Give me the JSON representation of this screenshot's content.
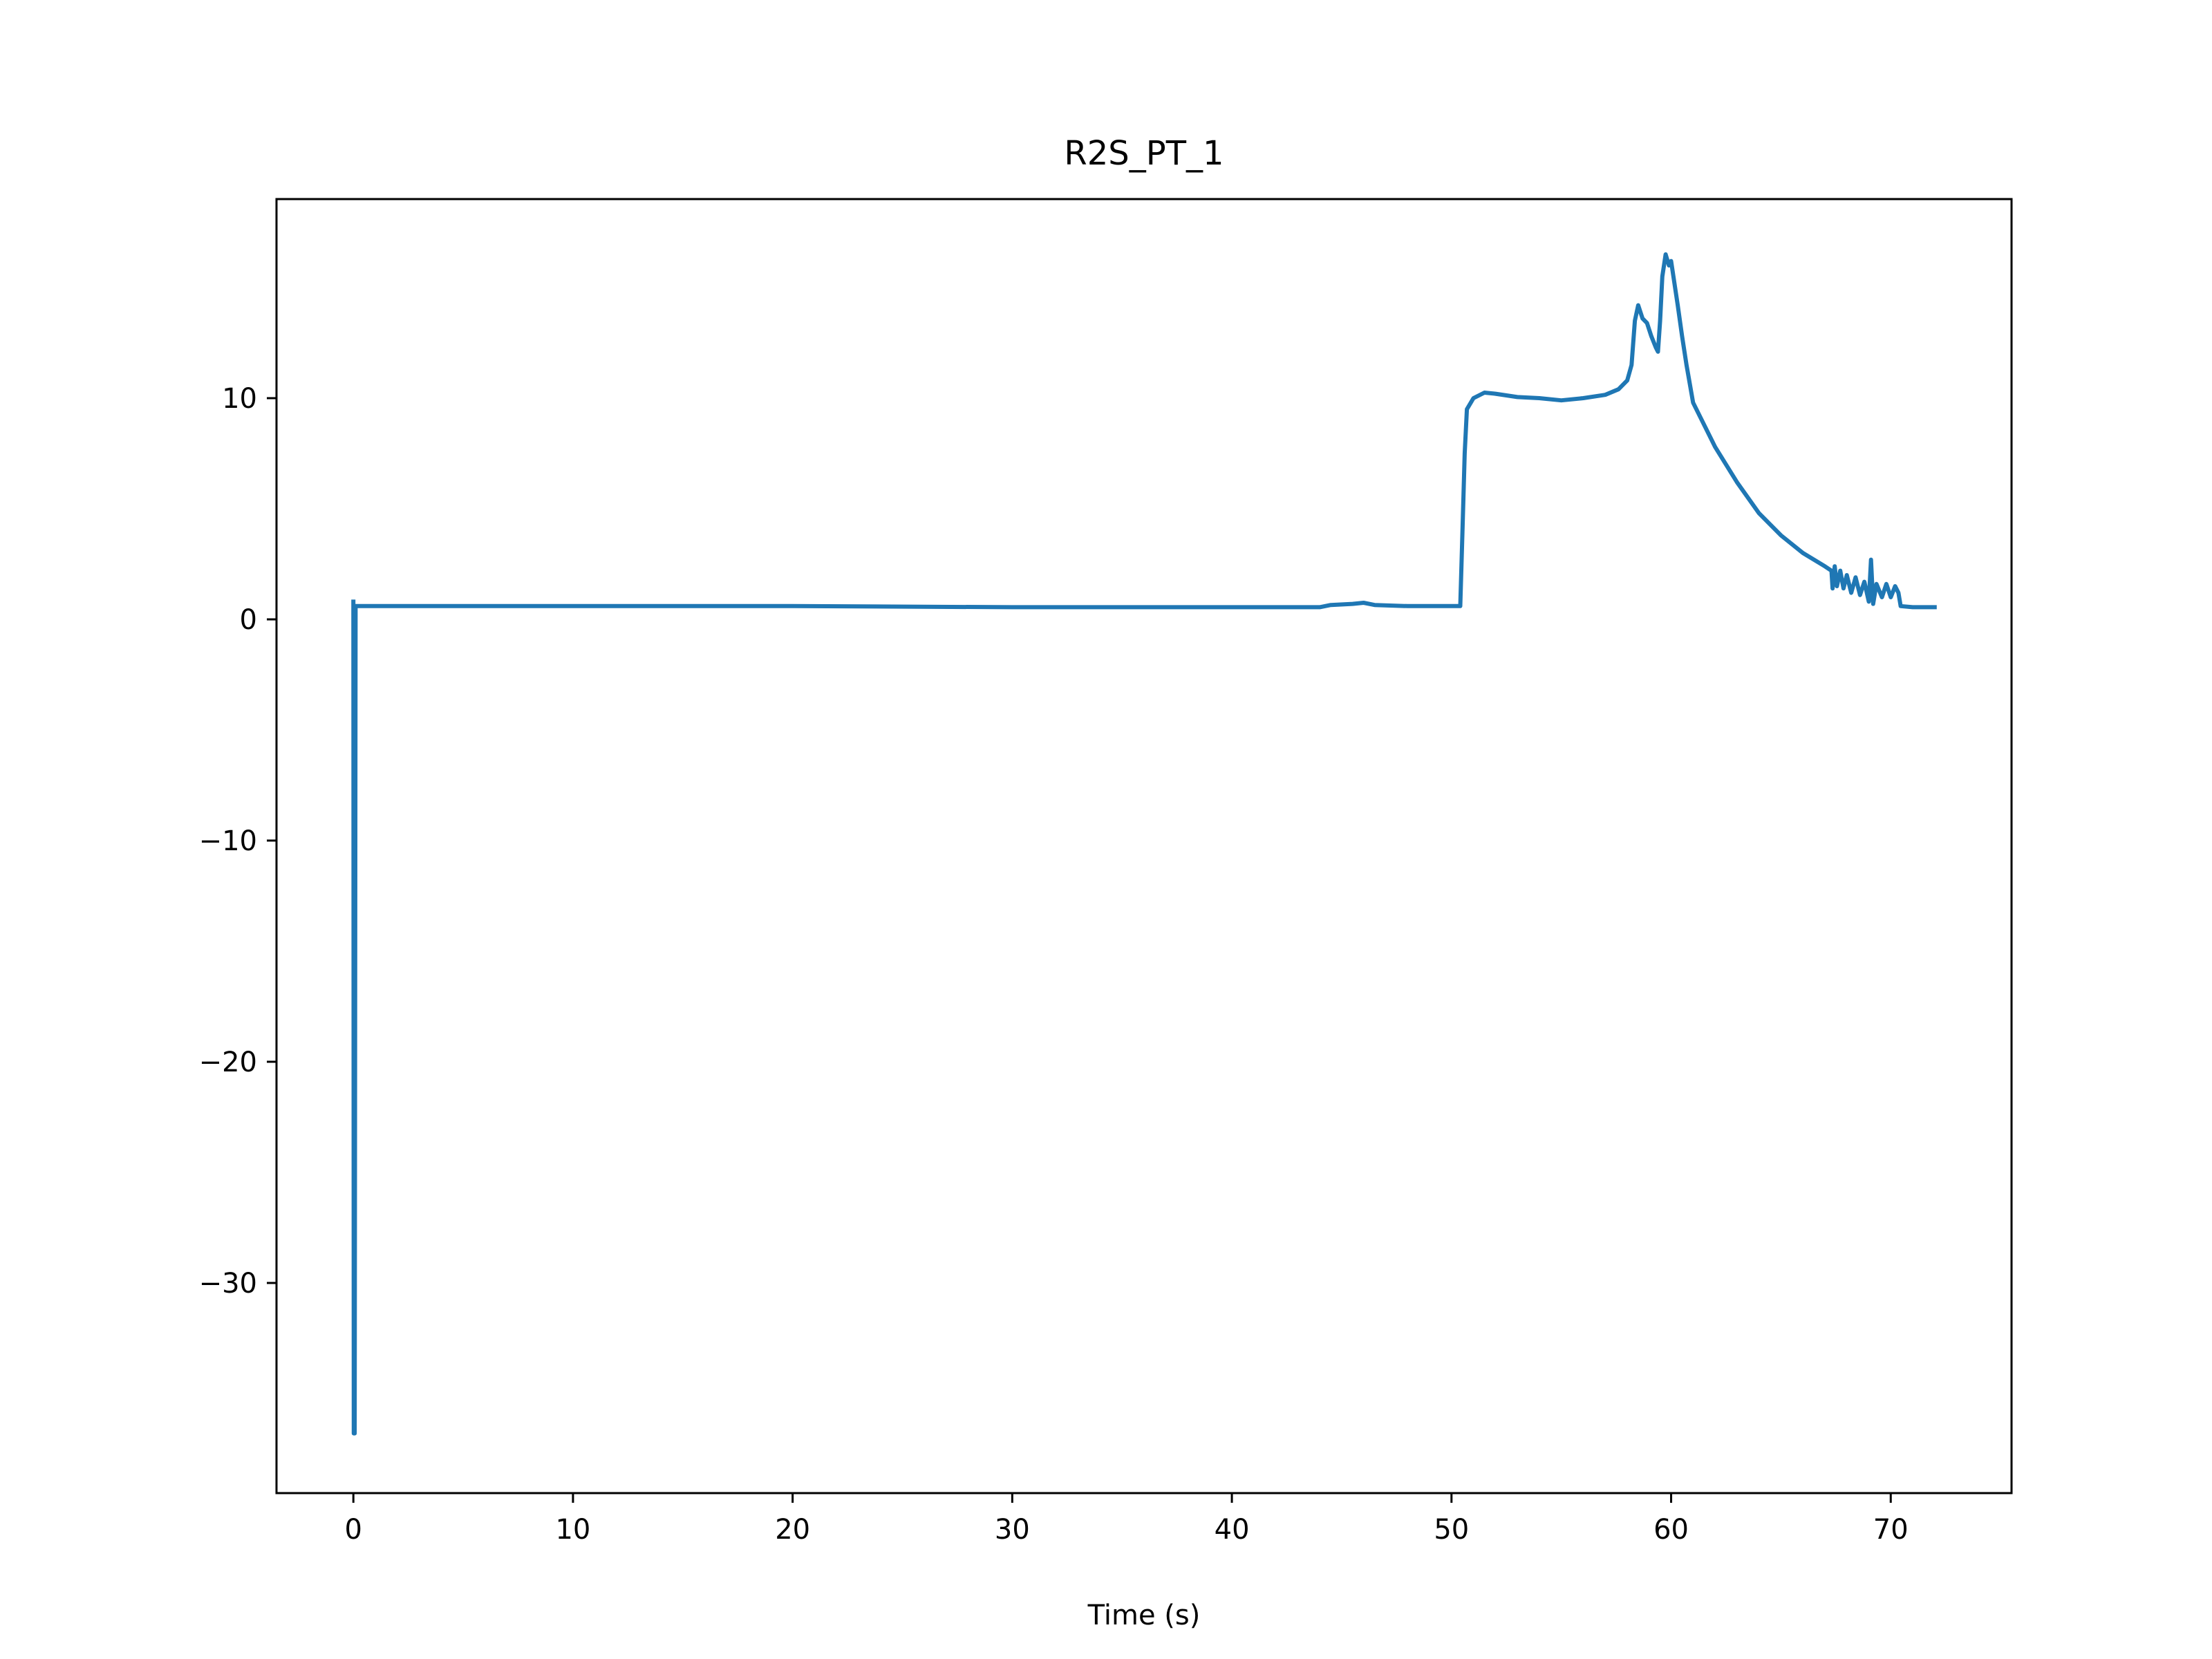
{
  "chart_data": {
    "type": "line",
    "title": "R2S_PT_1",
    "xlabel": "Time (s)",
    "ylabel": "",
    "xlim": [
      -3.5,
      75.5
    ],
    "ylim": [
      -39.5,
      19.0
    ],
    "xticks": [
      0,
      10,
      20,
      30,
      40,
      50,
      60,
      70
    ],
    "yticks": [
      -30,
      -20,
      -10,
      0,
      10
    ],
    "grid": false,
    "legend": "none",
    "series": [
      {
        "color": "#1f77b4",
        "points": [
          [
            0.0,
            0.8
          ],
          [
            0.02,
            -36.8
          ],
          [
            0.06,
            -36.8
          ],
          [
            0.1,
            0.6
          ],
          [
            0.2,
            0.6
          ],
          [
            10.0,
            0.6
          ],
          [
            20.0,
            0.6
          ],
          [
            30.0,
            0.55
          ],
          [
            40.0,
            0.55
          ],
          [
            44.0,
            0.55
          ],
          [
            44.5,
            0.65
          ],
          [
            45.5,
            0.7
          ],
          [
            46.0,
            0.75
          ],
          [
            46.5,
            0.65
          ],
          [
            48.0,
            0.6
          ],
          [
            50.0,
            0.6
          ],
          [
            50.4,
            0.6
          ],
          [
            50.5,
            4.0
          ],
          [
            50.6,
            7.5
          ],
          [
            50.7,
            9.5
          ],
          [
            51.0,
            10.0
          ],
          [
            51.5,
            10.25
          ],
          [
            52.0,
            10.2
          ],
          [
            53.0,
            10.05
          ],
          [
            54.0,
            10.0
          ],
          [
            55.0,
            9.9
          ],
          [
            56.0,
            10.0
          ],
          [
            57.0,
            10.15
          ],
          [
            57.6,
            10.4
          ],
          [
            58.0,
            10.8
          ],
          [
            58.2,
            11.5
          ],
          [
            58.35,
            13.5
          ],
          [
            58.5,
            14.2
          ],
          [
            58.7,
            13.6
          ],
          [
            58.9,
            13.4
          ],
          [
            59.1,
            12.8
          ],
          [
            59.3,
            12.3
          ],
          [
            59.4,
            12.1
          ],
          [
            59.5,
            13.5
          ],
          [
            59.6,
            15.5
          ],
          [
            59.75,
            16.5
          ],
          [
            59.9,
            16.0
          ],
          [
            60.0,
            16.2
          ],
          [
            60.15,
            15.2
          ],
          [
            60.3,
            14.2
          ],
          [
            60.5,
            12.8
          ],
          [
            60.7,
            11.5
          ],
          [
            61.0,
            9.8
          ],
          [
            62.0,
            7.8
          ],
          [
            63.0,
            6.2
          ],
          [
            64.0,
            4.8
          ],
          [
            65.0,
            3.8
          ],
          [
            66.0,
            3.0
          ],
          [
            67.0,
            2.4
          ],
          [
            67.3,
            2.2
          ],
          [
            67.35,
            1.4
          ],
          [
            67.45,
            2.4
          ],
          [
            67.55,
            1.5
          ],
          [
            67.7,
            2.2
          ],
          [
            67.85,
            1.4
          ],
          [
            68.0,
            2.0
          ],
          [
            68.2,
            1.2
          ],
          [
            68.4,
            1.9
          ],
          [
            68.6,
            1.1
          ],
          [
            68.8,
            1.7
          ],
          [
            69.0,
            0.8
          ],
          [
            69.1,
            2.7
          ],
          [
            69.2,
            0.7
          ],
          [
            69.35,
            1.6
          ],
          [
            69.6,
            1.0
          ],
          [
            69.8,
            1.6
          ],
          [
            70.0,
            1.0
          ],
          [
            70.2,
            1.5
          ],
          [
            70.35,
            1.2
          ],
          [
            70.45,
            0.6
          ],
          [
            71.0,
            0.55
          ],
          [
            72.0,
            0.55
          ]
        ]
      }
    ]
  }
}
